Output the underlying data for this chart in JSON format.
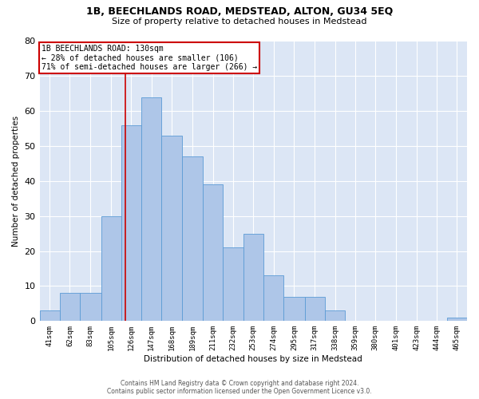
{
  "title": "1B, BEECHLANDS ROAD, MEDSTEAD, ALTON, GU34 5EQ",
  "subtitle": "Size of property relative to detached houses in Medstead",
  "xlabel": "Distribution of detached houses by size in Medstead",
  "ylabel": "Number of detached properties",
  "bar_color": "#aec6e8",
  "bar_edge_color": "#5b9bd5",
  "background_color": "#dce6f5",
  "grid_color": "#ffffff",
  "annotation_box_color": "#cc0000",
  "vertical_line_color": "#cc0000",
  "vertical_line_x": 130,
  "annotation_text": "1B BEECHLANDS ROAD: 130sqm\n← 28% of detached houses are smaller (106)\n71% of semi-detached houses are larger (266) →",
  "footer_text": "Contains HM Land Registry data © Crown copyright and database right 2024.\nContains public sector information licensed under the Open Government Licence v3.0.",
  "bin_starts": [
    41,
    62,
    83,
    105,
    126,
    147,
    168,
    189,
    211,
    232,
    253,
    274,
    295,
    317,
    338,
    359,
    380,
    401,
    423,
    444,
    465
  ],
  "bar_heights": [
    3,
    8,
    8,
    30,
    56,
    64,
    53,
    47,
    39,
    21,
    25,
    13,
    7,
    7,
    3,
    0,
    0,
    0,
    0,
    0,
    1
  ],
  "tick_labels": [
    "41sqm",
    "62sqm",
    "83sqm",
    "105sqm",
    "126sqm",
    "147sqm",
    "168sqm",
    "189sqm",
    "211sqm",
    "232sqm",
    "253sqm",
    "274sqm",
    "295sqm",
    "317sqm",
    "338sqm",
    "359sqm",
    "380sqm",
    "401sqm",
    "423sqm",
    "444sqm",
    "465sqm"
  ],
  "ylim": [
    0,
    80
  ],
  "yticks": [
    0,
    10,
    20,
    30,
    40,
    50,
    60,
    70,
    80
  ]
}
